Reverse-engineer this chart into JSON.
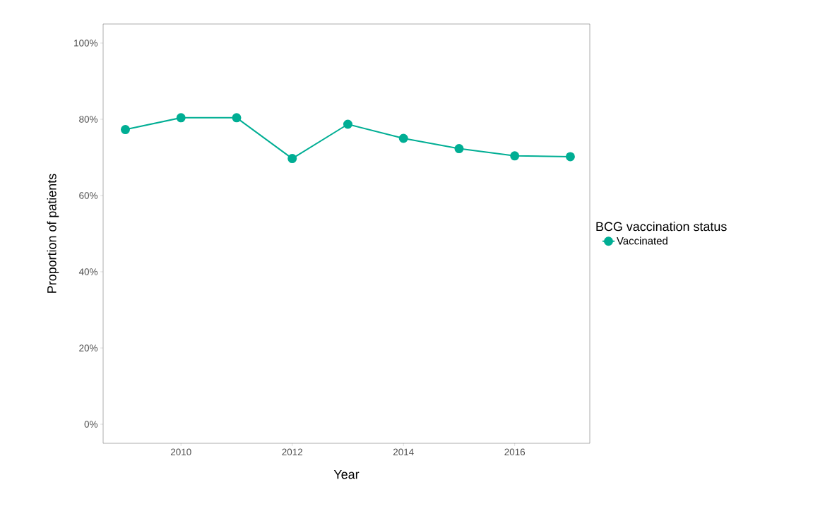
{
  "chart_data": {
    "type": "line",
    "xlabel": "Year",
    "ylabel": "Proportion of patients",
    "legend_title": "BCG vaccination status",
    "x": [
      2009,
      2010,
      2011,
      2012,
      2013,
      2014,
      2015,
      2016,
      2017
    ],
    "series": [
      {
        "name": "Vaccinated",
        "color": "#00ae94",
        "values": [
          77.3,
          80.4,
          80.4,
          69.7,
          78.7,
          75.0,
          72.3,
          70.4,
          70.2
        ]
      }
    ],
    "xlim": [
      2008.6,
      2017.35
    ],
    "ylim": [
      -5,
      105
    ],
    "xticks": [
      2010,
      2012,
      2014,
      2016
    ],
    "yticks": [
      {
        "value": 0,
        "label": "0%"
      },
      {
        "value": 20,
        "label": "20%"
      },
      {
        "value": 40,
        "label": "40%"
      },
      {
        "value": 60,
        "label": "60%"
      },
      {
        "value": 80,
        "label": "80%"
      },
      {
        "value": 100,
        "label": "100%"
      }
    ],
    "grid": false,
    "legend": "right",
    "marker": "circle",
    "line_style": "solid"
  }
}
